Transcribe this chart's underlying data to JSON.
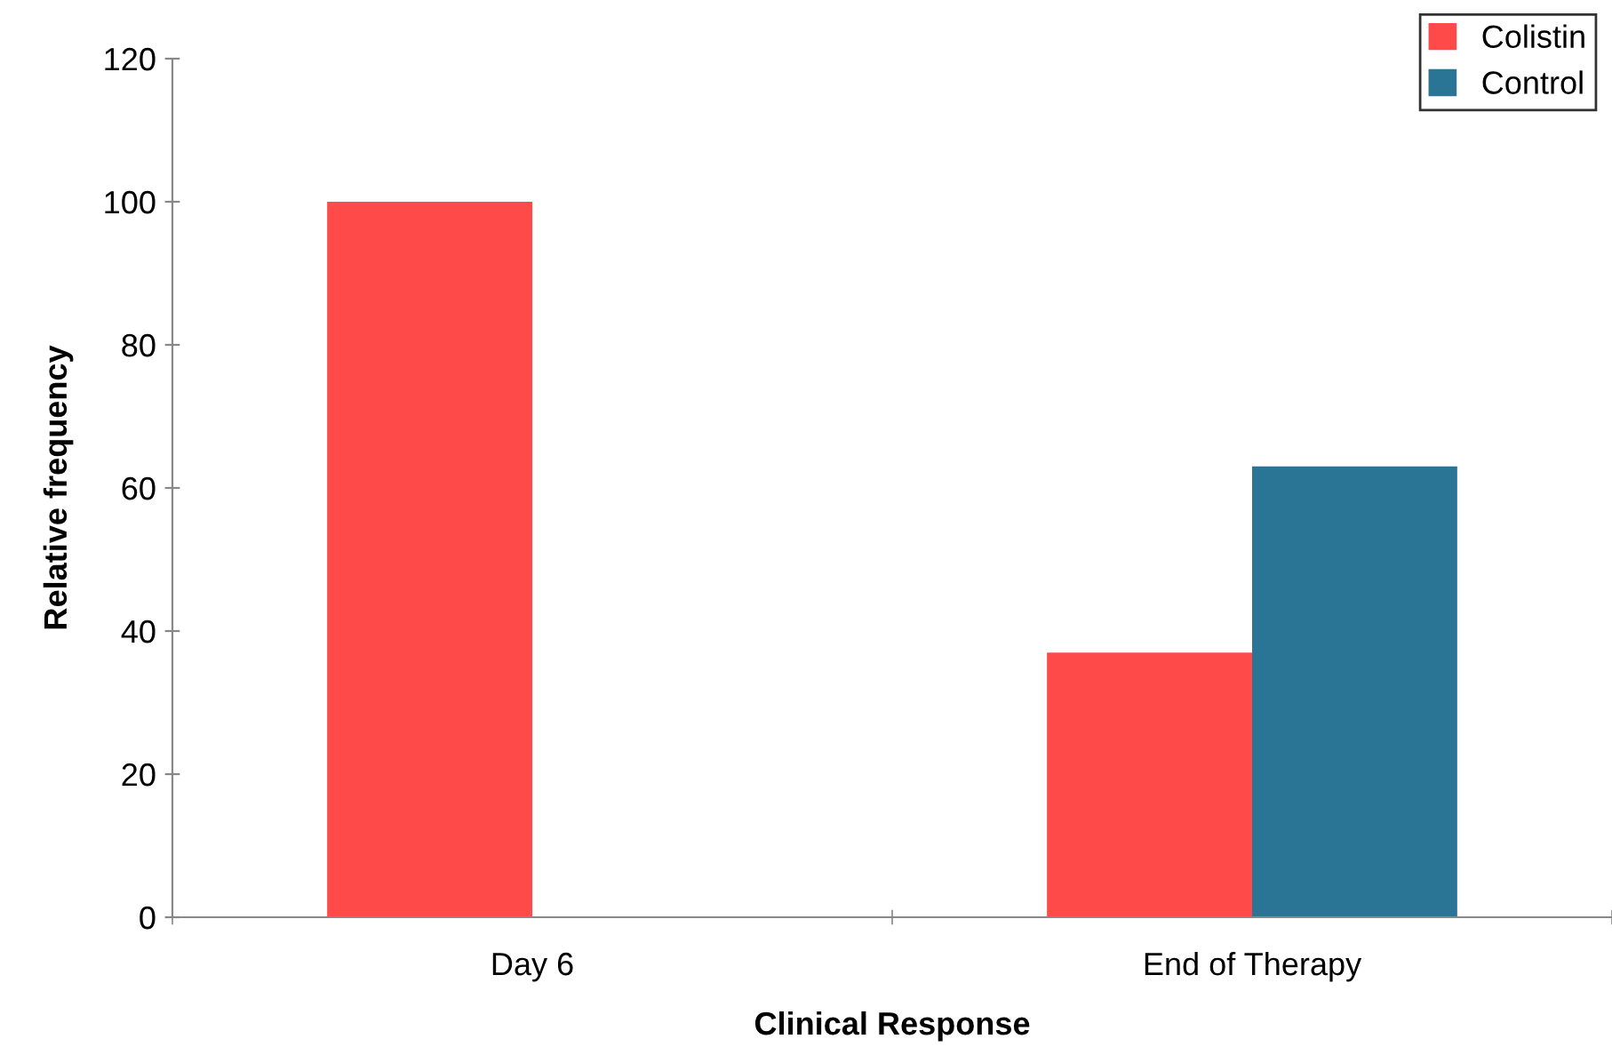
{
  "chart_data": {
    "type": "bar",
    "xlabel": "Clinical Response",
    "ylabel": "Relative frequency",
    "categories": [
      "Day 6",
      "End of Therapy"
    ],
    "series": [
      {
        "name": "Colistin",
        "color": "#ff4a4a",
        "values": [
          100,
          37
        ]
      },
      {
        "name": "Control",
        "color": "#2a7596",
        "values": [
          0,
          63
        ]
      }
    ],
    "ylim": [
      0,
      120
    ],
    "yticks": [
      0,
      20,
      40,
      60,
      80,
      100,
      120
    ],
    "grid": false,
    "legend": "top right"
  }
}
